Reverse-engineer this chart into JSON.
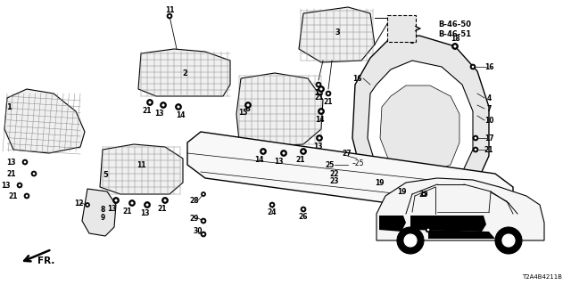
{
  "bg_color": "#ffffff",
  "diagram_code": "T2A4B4211B",
  "ref_label_1": "B-46-50",
  "ref_label_2": "B-46-51",
  "fr_text": "FR.",
  "figsize": [
    6.4,
    3.2
  ],
  "dpi": 100
}
